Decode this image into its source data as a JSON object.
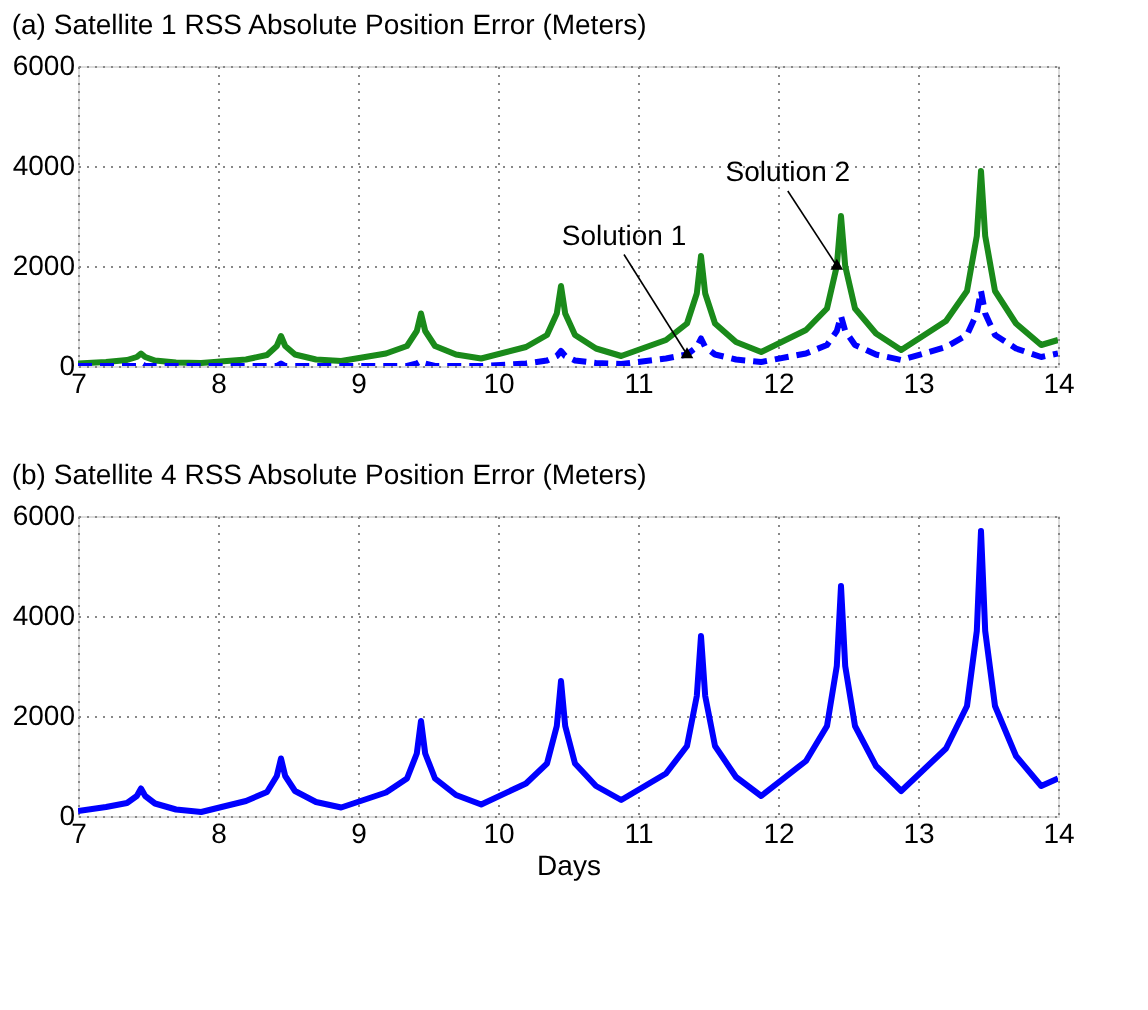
{
  "chart_data": [
    {
      "type": "line",
      "title": "(a) Satellite 1 RSS Absolute Position Error (Meters)",
      "xlim": [
        7,
        14
      ],
      "xticks": [
        7,
        8,
        9,
        10,
        11,
        12,
        13,
        14
      ],
      "ylim": [
        0,
        6000
      ],
      "yticks": [
        0,
        2000,
        4000,
        6000
      ],
      "grid": true,
      "x": [
        7.0,
        7.2,
        7.35,
        7.42,
        7.45,
        7.48,
        7.55,
        7.7,
        7.88,
        8.2,
        8.35,
        8.42,
        8.45,
        8.48,
        8.55,
        8.7,
        8.88,
        9.2,
        9.35,
        9.42,
        9.45,
        9.48,
        9.55,
        9.7,
        9.88,
        10.2,
        10.35,
        10.42,
        10.45,
        10.48,
        10.55,
        10.7,
        10.88,
        11.2,
        11.35,
        11.42,
        11.45,
        11.48,
        11.55,
        11.7,
        11.88,
        12.2,
        12.35,
        12.42,
        12.45,
        12.48,
        12.55,
        12.7,
        12.88,
        13.2,
        13.35,
        13.42,
        13.45,
        13.48,
        13.55,
        13.7,
        13.88,
        14.0
      ],
      "series": [
        {
          "name": "Solution 2",
          "color": "#1a8a1a",
          "line_style": "solid",
          "values": [
            50,
            80,
            120,
            180,
            250,
            180,
            110,
            70,
            60,
            130,
            220,
            400,
            600,
            400,
            230,
            130,
            100,
            250,
            400,
            700,
            1050,
            700,
            400,
            230,
            150,
            380,
            620,
            1050,
            1600,
            1050,
            620,
            350,
            200,
            520,
            850,
            1450,
            2200,
            1450,
            850,
            480,
            280,
            720,
            1150,
            2000,
            3000,
            2000,
            1150,
            650,
            320,
            900,
            1500,
            2600,
            3900,
            2600,
            1500,
            850,
            420,
            520
          ]
        },
        {
          "name": "Solution 1",
          "color": "#0000ff",
          "line_style": "dashed",
          "values": [
            0,
            0,
            0,
            0,
            50,
            0,
            0,
            0,
            0,
            0,
            0,
            0,
            50,
            0,
            0,
            0,
            0,
            0,
            0,
            50,
            100,
            50,
            0,
            0,
            0,
            50,
            110,
            200,
            300,
            200,
            110,
            60,
            40,
            150,
            230,
            380,
            550,
            380,
            230,
            130,
            80,
            250,
            420,
            700,
            1000,
            700,
            420,
            230,
            120,
            380,
            620,
            1050,
            1500,
            1050,
            620,
            350,
            180,
            250
          ]
        }
      ],
      "marker": "none"
    },
    {
      "type": "line",
      "title": "(b) Satellite 4 RSS Absolute Position Error (Meters)",
      "xlabel": "Days",
      "xlim": [
        7,
        14
      ],
      "xticks": [
        7,
        8,
        9,
        10,
        11,
        12,
        13,
        14
      ],
      "ylim": [
        0,
        6000
      ],
      "yticks": [
        0,
        2000,
        4000,
        6000
      ],
      "grid": true,
      "marker": "none",
      "x": [
        7.0,
        7.2,
        7.35,
        7.42,
        7.45,
        7.48,
        7.55,
        7.7,
        7.88,
        8.2,
        8.35,
        8.42,
        8.45,
        8.48,
        8.55,
        8.7,
        8.88,
        9.2,
        9.35,
        9.42,
        9.45,
        9.48,
        9.55,
        9.7,
        9.88,
        10.2,
        10.35,
        10.42,
        10.45,
        10.48,
        10.55,
        10.7,
        10.88,
        11.2,
        11.35,
        11.42,
        11.45,
        11.48,
        11.55,
        11.7,
        11.88,
        12.2,
        12.35,
        12.42,
        12.45,
        12.48,
        12.55,
        12.7,
        12.88,
        13.2,
        13.35,
        13.42,
        13.45,
        13.48,
        13.55,
        13.7,
        13.88,
        14.0
      ],
      "series": [
        {
          "color": "#0000ff",
          "line_style": "solid",
          "values": [
            100,
            180,
            260,
            400,
            550,
            400,
            250,
            130,
            80,
            300,
            480,
            800,
            1150,
            800,
            500,
            280,
            170,
            470,
            750,
            1250,
            1900,
            1250,
            750,
            420,
            230,
            650,
            1050,
            1800,
            2700,
            1800,
            1050,
            600,
            320,
            850,
            1400,
            2400,
            3600,
            2400,
            1400,
            780,
            400,
            1100,
            1800,
            3000,
            4600,
            3000,
            1800,
            1000,
            500,
            1350,
            2200,
            3700,
            5700,
            3700,
            2200,
            1200,
            600,
            750
          ]
        }
      ]
    }
  ]
}
